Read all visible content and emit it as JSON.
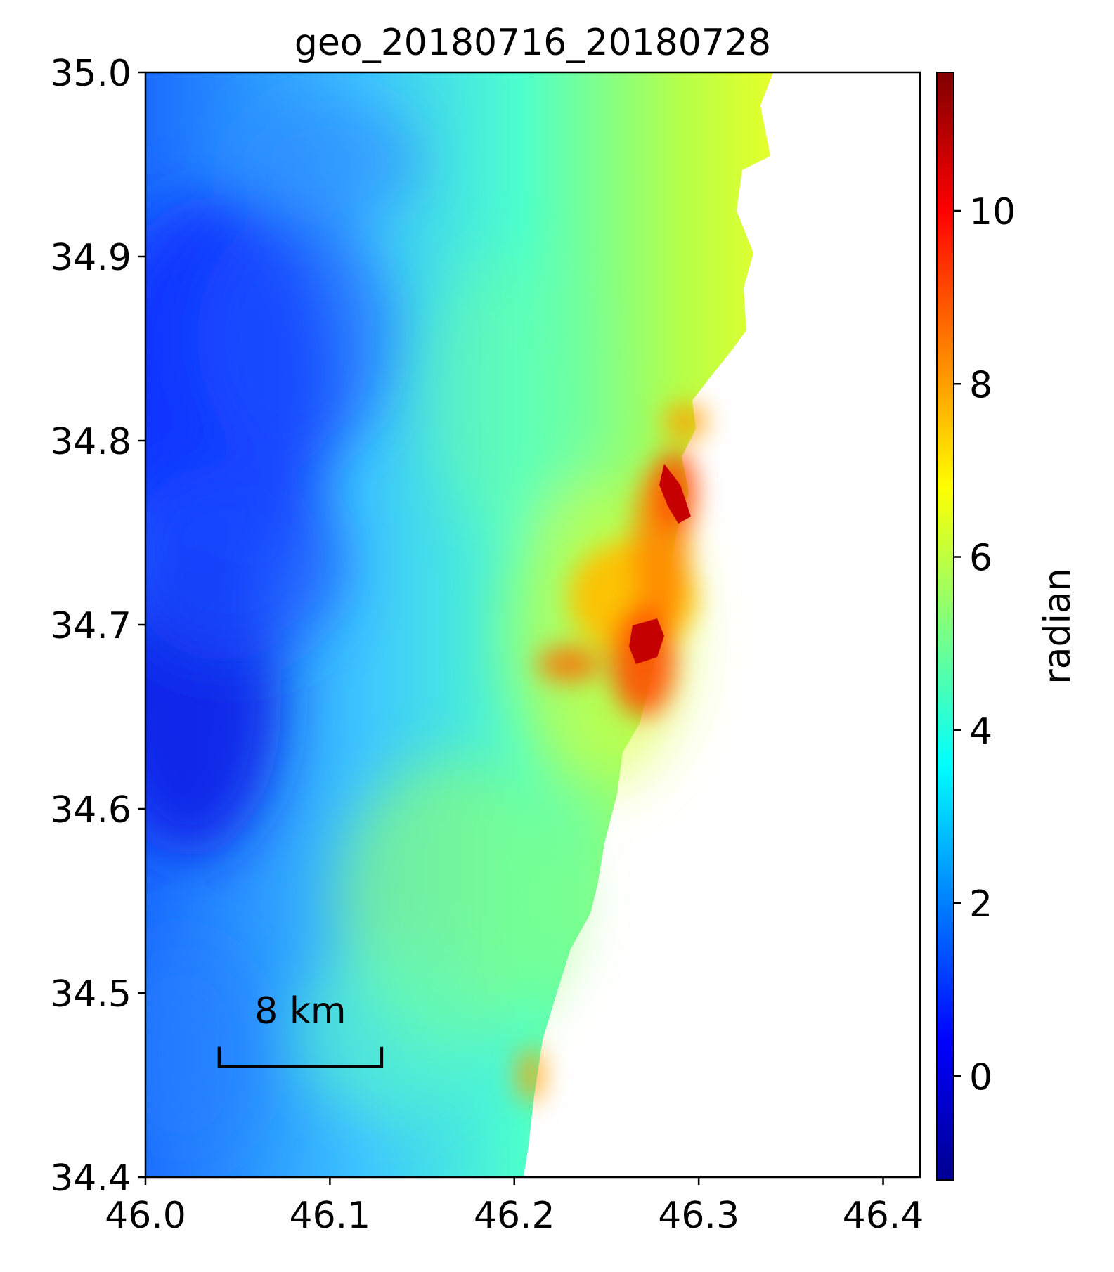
{
  "chart_data": {
    "type": "heatmap",
    "title": "geo_20180716_20180728",
    "xlabel": "",
    "ylabel": "",
    "xlim": [
      46.0,
      46.42
    ],
    "ylim": [
      34.4,
      35.0
    ],
    "x_ticks": [
      "46.0",
      "46.1",
      "46.2",
      "46.3",
      "46.4"
    ],
    "x_tick_values": [
      46.0,
      46.1,
      46.2,
      46.3,
      46.4
    ],
    "y_ticks": [
      "35.0",
      "34.9",
      "34.8",
      "34.7",
      "34.6",
      "34.5",
      "34.4"
    ],
    "y_tick_values": [
      35.0,
      34.9,
      34.8,
      34.7,
      34.6,
      34.5,
      34.4
    ],
    "colorbar": {
      "label": "radian",
      "colormap": "jet",
      "range": [
        -1.2,
        11.6
      ],
      "ticks": [
        "0",
        "2",
        "4",
        "6",
        "8",
        "10"
      ],
      "tick_values": [
        0,
        2,
        4,
        6,
        8,
        10
      ]
    },
    "scale_bar": {
      "label": "8 km",
      "x_start": 46.04,
      "x_end": 46.128,
      "y": 34.46
    },
    "grid": false,
    "description_of_field": [
      {
        "region": "west",
        "value_approx": 1.5
      },
      {
        "region": "center",
        "value_approx": 4.0
      },
      {
        "region": "east-coast",
        "value_approx": 6.5
      },
      {
        "region": "hotspot",
        "lon": 46.29,
        "lat": 34.76,
        "value_approx": 11.0
      },
      {
        "region": "hotspot",
        "lon": 46.275,
        "lat": 34.69,
        "value_approx": 11.0
      }
    ]
  }
}
